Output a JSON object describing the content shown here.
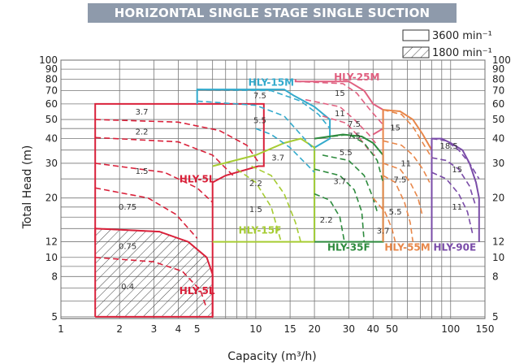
{
  "chart_data": {
    "type": "line",
    "title": "HORIZONTAL SINGLE STAGE SINGLE SUCTION",
    "xlabel": "Capacity (m³/h)",
    "ylabel": "Total Head (m)",
    "x_scale": "log",
    "y_scale": "log",
    "xlim": [
      1,
      150
    ],
    "ylim": [
      4.9,
      100
    ],
    "x_ticks": [
      1,
      2,
      3,
      4,
      5,
      10,
      15,
      20,
      30,
      40,
      50,
      100,
      150
    ],
    "y_ticks": [
      5,
      8,
      10,
      12,
      20,
      30,
      40,
      50,
      60,
      70,
      80,
      90,
      100
    ],
    "x_minor": [
      6,
      7,
      8,
      9,
      60,
      70,
      80,
      90
    ],
    "grid": true,
    "legend": [
      {
        "label": "3600 min⁻¹",
        "pattern": "open"
      },
      {
        "label": "1800 min⁻¹",
        "pattern": "hatched"
      }
    ],
    "zones": [
      {
        "name": "HLY-5L",
        "speed": 3600,
        "color": "#d9213a",
        "outline": [
          [
            1.5,
            12
          ],
          [
            1.5,
            60
          ],
          [
            11,
            60
          ],
          [
            11,
            29
          ],
          [
            10.3,
            29
          ],
          [
            7,
            26
          ],
          [
            6,
            24
          ],
          [
            6,
            5
          ],
          [
            1.5,
            5
          ]
        ],
        "label_at": [
          5.0,
          24
        ],
        "curves": [
          {
            "kw": "3.7",
            "pts": [
              [
                1.5,
                50
              ],
              [
                4,
                48.5
              ],
              [
                6.5,
                44
              ],
              [
                9,
                37
              ],
              [
                10.4,
                30
              ]
            ],
            "label_at": [
              2.6,
              53
            ]
          },
          {
            "kw": "2.2",
            "pts": [
              [
                1.5,
                40.5
              ],
              [
                4,
                38.5
              ],
              [
                6,
                33
              ],
              [
                7.8,
                25.5
              ]
            ],
            "label_at": [
              2.6,
              42
            ]
          },
          {
            "kw": "1.5",
            "pts": [
              [
                1.5,
                30
              ],
              [
                3.4,
                27
              ],
              [
                5,
                22.5
              ],
              [
                6,
                19
              ]
            ],
            "label_at": [
              2.6,
              26.5
            ]
          },
          {
            "kw": "0.75",
            "pts": [
              [
                1.5,
                22.5
              ],
              [
                2.8,
                20
              ],
              [
                3.9,
                16.5
              ],
              [
                5,
                12.5
              ]
            ],
            "label_at": [
              2.2,
              17.5
            ]
          }
        ]
      },
      {
        "name": "HLY-5L",
        "speed": 1800,
        "color": "#d9213a",
        "hatched": true,
        "outline": [
          [
            1.5,
            5
          ],
          [
            1.5,
            14
          ],
          [
            3.2,
            13.5
          ],
          [
            4.5,
            12
          ],
          [
            5.6,
            10
          ],
          [
            6,
            8.2
          ],
          [
            6,
            5
          ]
        ],
        "label_at": [
          5.0,
          6.5
        ],
        "curves": [
          {
            "kw": "0.75",
            "pts": [
              [
                1.5,
                14
              ],
              [
                3.2,
                13.5
              ],
              [
                4.5,
                12
              ],
              [
                5.6,
                10
              ],
              [
                6,
                8.2
              ]
            ],
            "label_at": [
              2.2,
              11
            ]
          },
          {
            "kw": "0.4",
            "pts": [
              [
                1.5,
                10
              ],
              [
                3,
                9.5
              ],
              [
                4.2,
                8.5
              ],
              [
                5.2,
                6.8
              ],
              [
                5.6,
                5.5
              ]
            ],
            "label_at": [
              2.2,
              6.9
            ]
          }
        ]
      },
      {
        "name": "HLY-15M",
        "speed": 3600,
        "color": "#33aacc",
        "outline": [
          [
            5,
            60
          ],
          [
            5,
            71
          ],
          [
            14,
            71
          ],
          [
            15.7,
            66
          ],
          [
            20,
            58
          ],
          [
            24,
            50
          ],
          [
            24,
            40
          ],
          [
            20,
            36
          ],
          [
            20,
            12
          ]
        ],
        "label_at": [
          12,
          74
        ],
        "curves": [
          {
            "kw": "7.5",
            "pts": [
              [
                5,
                71
              ],
              [
                12,
                70
              ],
              [
                17,
                62
              ],
              [
                21,
                53
              ],
              [
                24,
                45
              ]
            ],
            "label_at": [
              10.5,
              64
            ]
          },
          {
            "kw": "5.5",
            "pts": [
              [
                5,
                62
              ],
              [
                10,
                59
              ],
              [
                14,
                52
              ],
              [
                17,
                42
              ],
              [
                20,
                35
              ]
            ],
            "label_at": [
              10.5,
              48
            ]
          },
          {
            "kw": "3.7",
            "pts": [
              [
                10,
                45
              ],
              [
                12,
                42
              ],
              [
                15,
                36
              ],
              [
                18,
                30
              ],
              [
                20,
                27
              ]
            ],
            "label_at": [
              13,
              31
            ]
          }
        ]
      },
      {
        "name": "HLY-15F",
        "speed": 3600,
        "color": "#a6cc33",
        "outline": [
          [
            6,
            12
          ],
          [
            20,
            12
          ],
          [
            20,
            36
          ],
          [
            17,
            40
          ],
          [
            14,
            38
          ],
          [
            10,
            33
          ],
          [
            6,
            29
          ]
        ],
        "label_at": [
          10.5,
          13.2
        ],
        "curves": [
          {
            "kw": "2.2",
            "pts": [
              [
                9.5,
                29
              ],
              [
                12,
                26
              ],
              [
                14,
                21
              ],
              [
                16,
                15
              ],
              [
                17,
                12
              ]
            ],
            "label_at": [
              10,
              23
            ]
          },
          {
            "kw": "1.5",
            "pts": [
              [
                8,
                28
              ],
              [
                10,
                24
              ],
              [
                12,
                18
              ],
              [
                13.5,
                12
              ]
            ],
            "label_at": [
              10,
              17
            ]
          }
        ]
      },
      {
        "name": "HLY-25M",
        "speed": 3600,
        "color": "#e06080",
        "outline": [
          [
            16,
            80
          ],
          [
            16,
            78
          ],
          [
            30,
            78
          ],
          [
            36,
            70
          ],
          [
            40,
            60
          ],
          [
            45,
            56
          ],
          [
            45,
            45
          ],
          [
            40,
            42
          ]
        ],
        "label_at": [
          33,
          79
        ],
        "curves": [
          {
            "kw": "15",
            "pts": [
              [
                16,
                78
              ],
              [
                28,
                76
              ],
              [
                33,
                68
              ],
              [
                38,
                57
              ],
              [
                45,
                47
              ]
            ],
            "label_at": [
              27,
              66
            ]
          },
          {
            "kw": "11",
            "pts": [
              [
                18,
                63
              ],
              [
                27,
                58
              ],
              [
                32,
                50
              ],
              [
                38,
                42
              ],
              [
                42,
                37
              ]
            ],
            "label_at": [
              27,
              52
            ]
          },
          {
            "kw": "7.5",
            "pts": [
              [
                22,
                52
              ],
              [
                29,
                48
              ],
              [
                33,
                42
              ],
              [
                38,
                35
              ],
              [
                42,
                32
              ]
            ],
            "label_at": [
              32,
              46
            ]
          }
        ]
      },
      {
        "name": "HLY-35F",
        "speed": 3600,
        "color": "#2e8b3e",
        "outline": [
          [
            20,
            12
          ],
          [
            45,
            12
          ],
          [
            45,
            33
          ],
          [
            40,
            38
          ],
          [
            35,
            41
          ],
          [
            28,
            42
          ],
          [
            20,
            40
          ]
        ],
        "label_at": [
          30,
          10.8
        ],
        "curves": [
          {
            "kw": "7.5",
            "pts": [
              [
                20,
                40
              ],
              [
                30,
                42
              ],
              [
                36,
                38
              ],
              [
                42,
                31
              ],
              [
                45,
                24
              ]
            ],
            "label_at": [
              32,
              40
            ]
          },
          {
            "kw": "5.5",
            "pts": [
              [
                22,
                33
              ],
              [
                30,
                31
              ],
              [
                36,
                26
              ],
              [
                40,
                20
              ],
              [
                42,
                17
              ]
            ],
            "label_at": [
              29,
              33
            ]
          },
          {
            "kw": "3.7",
            "pts": [
              [
                20,
                28
              ],
              [
                27,
                26
              ],
              [
                32,
                22
              ],
              [
                35,
                17
              ],
              [
                36,
                12
              ]
            ],
            "label_at": [
              27,
              23.5
            ]
          },
          {
            "kw": "2.2",
            "pts": [
              [
                20,
                21
              ],
              [
                24,
                19.5
              ],
              [
                27,
                16
              ],
              [
                28.5,
                12
              ]
            ],
            "label_at": [
              23,
              15
            ]
          }
        ]
      },
      {
        "name": "HLY-55M",
        "speed": 3600,
        "color": "#e8874a",
        "outline": [
          [
            45,
            12
          ],
          [
            45,
            56
          ],
          [
            55,
            55
          ],
          [
            64,
            50
          ],
          [
            72,
            42
          ],
          [
            80,
            35
          ],
          [
            80,
            12
          ]
        ],
        "label_at": [
          60,
          10.8
        ],
        "curves": [
          {
            "kw": "15",
            "pts": [
              [
                45,
                56
              ],
              [
                56,
                53
              ],
              [
                64,
                46
              ],
              [
                72,
                38
              ],
              [
                80,
                32
              ]
            ],
            "label_at": [
              52,
              44
            ]
          },
          {
            "kw": "11",
            "pts": [
              [
                45,
                39
              ],
              [
                56,
                37
              ],
              [
                64,
                33
              ],
              [
                72,
                28
              ],
              [
                78,
                24
              ]
            ],
            "label_at": [
              59,
              29
            ]
          },
          {
            "kw": "7.5",
            "pts": [
              [
                45,
                30
              ],
              [
                55,
                28
              ],
              [
                62,
                24
              ],
              [
                68,
                20
              ],
              [
                72,
                16
              ]
            ],
            "label_at": [
              55,
              24
            ]
          },
          {
            "kw": "5.5",
            "pts": [
              [
                45,
                26
              ],
              [
                52,
                24
              ],
              [
                58,
                19
              ],
              [
                62,
                15
              ],
              [
                64,
                12
              ]
            ],
            "label_at": [
              52,
              16.5
            ]
          },
          {
            "kw": "3.7",
            "pts": [
              [
                40,
                20
              ],
              [
                46,
                17
              ],
              [
                50,
                14
              ],
              [
                52,
                12
              ]
            ],
            "label_at": [
              45,
              13.2
            ]
          }
        ]
      },
      {
        "name": "HLY-90E",
        "speed": 3600,
        "color": "#7a4ca8",
        "outline": [
          [
            80,
            12
          ],
          [
            80,
            40
          ],
          [
            90,
            40
          ],
          [
            100,
            38
          ],
          [
            115,
            35
          ],
          [
            125,
            30
          ],
          [
            135,
            24
          ],
          [
            140,
            20
          ],
          [
            140,
            12
          ]
        ],
        "label_at": [
          105,
          10.8
        ],
        "curves": [
          {
            "kw": "18.5",
            "pts": [
              [
                80,
                40
              ],
              [
                95,
                39
              ],
              [
                110,
                35
              ],
              [
                125,
                30
              ],
              [
                140,
                25
              ]
            ],
            "label_at": [
              98,
              35.5
            ]
          },
          {
            "kw": "15",
            "pts": [
              [
                80,
                32
              ],
              [
                95,
                31
              ],
              [
                110,
                28
              ],
              [
                125,
                23
              ],
              [
                135,
                18
              ]
            ],
            "label_at": [
              108,
              27
            ]
          },
          {
            "kw": "11",
            "pts": [
              [
                80,
                27
              ],
              [
                95,
                25
              ],
              [
                110,
                21
              ],
              [
                122,
                17
              ],
              [
                130,
                13
              ]
            ],
            "label_at": [
              108,
              17.5
            ]
          }
        ]
      }
    ]
  }
}
